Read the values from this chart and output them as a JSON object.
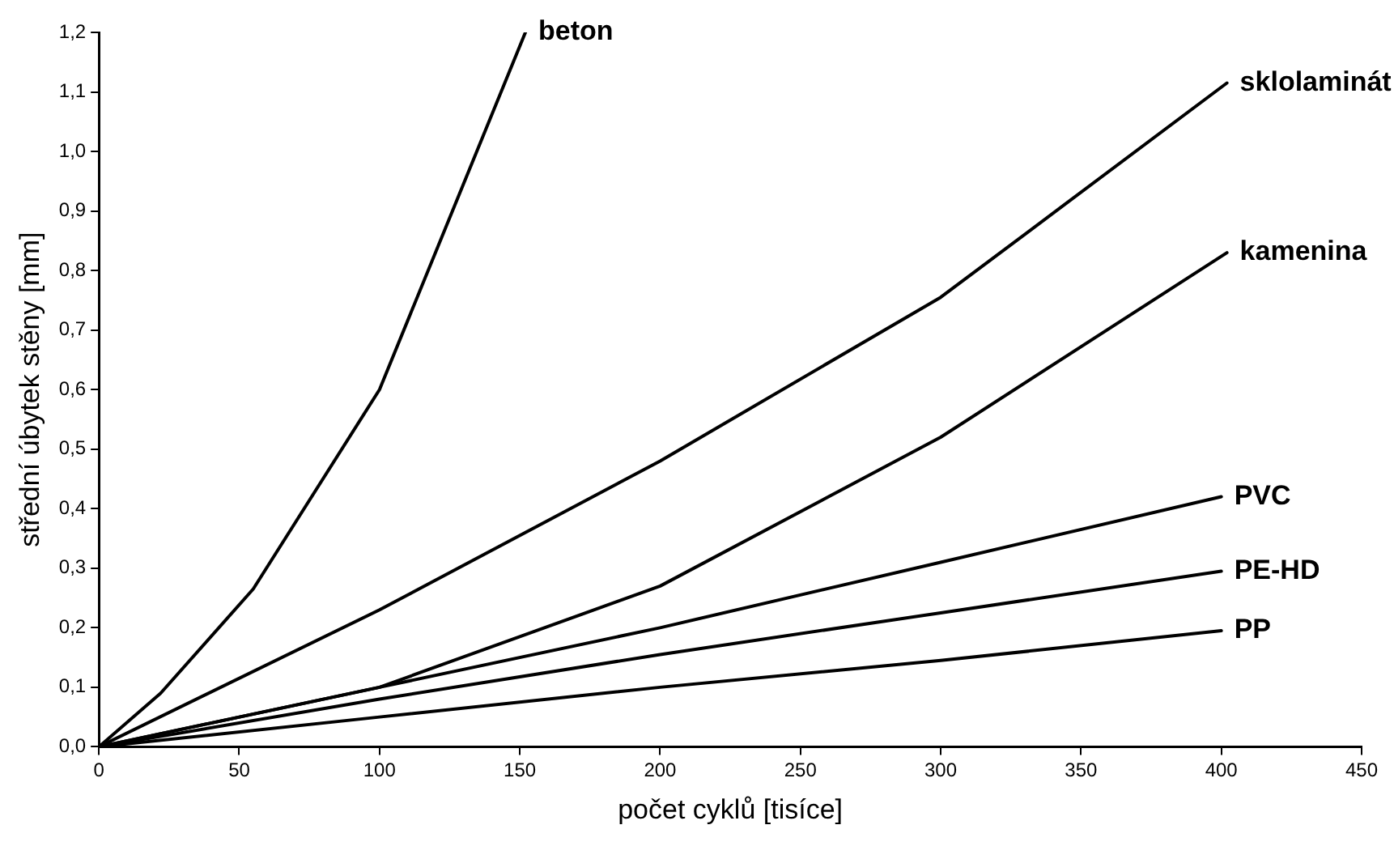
{
  "chart_data": {
    "type": "line",
    "xlabel": "počet cyklů [tisíce]",
    "ylabel": "střední úbytek stěny [mm]",
    "xlim": [
      0,
      450
    ],
    "xticks": [
      0,
      50,
      100,
      150,
      200,
      250,
      300,
      350,
      400,
      450
    ],
    "ylim": [
      0,
      1.2
    ],
    "yticks": [
      {
        "value": 0,
        "label": "0,0"
      },
      {
        "value": 0.1,
        "label": "0,1"
      },
      {
        "value": 0.2,
        "label": "0,2"
      },
      {
        "value": 0.3,
        "label": "0,3"
      },
      {
        "value": 0.4,
        "label": "0,4"
      },
      {
        "value": 0.5,
        "label": "0,5"
      },
      {
        "value": 0.6,
        "label": "0,6"
      },
      {
        "value": 0.7,
        "label": "0,7"
      },
      {
        "value": 0.8,
        "label": "0,8"
      },
      {
        "value": 0.9,
        "label": "0,9"
      },
      {
        "value": 1.0,
        "label": "1,0"
      },
      {
        "value": 1.1,
        "label": "1,1"
      },
      {
        "value": 1.2,
        "label": "1,2"
      }
    ],
    "grid": false,
    "legend": false,
    "marker": "none",
    "line_style": "solid",
    "series": [
      {
        "name": "beton",
        "color": "#000000",
        "x": [
          0,
          22,
          55,
          100,
          152
        ],
        "values": [
          0,
          0.09,
          0.265,
          0.6,
          1.2
        ]
      },
      {
        "name": "sklolaminát",
        "color": "#000000",
        "x": [
          0,
          100,
          200,
          300,
          402
        ],
        "values": [
          0,
          0.23,
          0.48,
          0.755,
          1.115
        ]
      },
      {
        "name": "kamenina",
        "color": "#000000",
        "x": [
          0,
          100,
          200,
          300,
          402
        ],
        "values": [
          0,
          0.1,
          0.27,
          0.52,
          0.83
        ]
      },
      {
        "name": "PVC",
        "color": "#000000",
        "x": [
          0,
          100,
          200,
          300,
          400
        ],
        "values": [
          0,
          0.1,
          0.2,
          0.31,
          0.42
        ]
      },
      {
        "name": "PE-HD",
        "color": "#000000",
        "x": [
          0,
          100,
          200,
          300,
          400
        ],
        "values": [
          0,
          0.08,
          0.155,
          0.225,
          0.295
        ]
      },
      {
        "name": "PP",
        "color": "#000000",
        "x": [
          0,
          100,
          200,
          300,
          400
        ],
        "values": [
          0,
          0.05,
          0.1,
          0.145,
          0.195
        ]
      }
    ]
  }
}
